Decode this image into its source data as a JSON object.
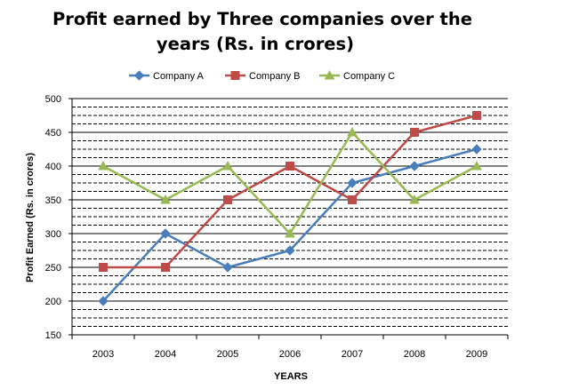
{
  "chart_data": {
    "type": "line",
    "title_line1": "Profit earned by Three companies over the",
    "title_line2": "years (Rs. in crores)",
    "xlabel": "YEARS",
    "ylabel": "Profit Earned (Rs.  in crores)",
    "categories": [
      "2003",
      "2004",
      "2005",
      "2006",
      "2007",
      "2008",
      "2009"
    ],
    "ylim": [
      150,
      500
    ],
    "yticks": [
      "150",
      "200",
      "250",
      "300",
      "350",
      "400",
      "450",
      "500"
    ],
    "ytick_values": [
      150,
      200,
      250,
      300,
      350,
      400,
      450,
      500
    ],
    "minor_grid_step": 12.5,
    "legend_position": "top",
    "series": [
      {
        "name": "Company A",
        "color": "#4a7ebb",
        "marker": "diamond",
        "values": [
          200,
          300,
          250,
          275,
          375,
          400,
          425
        ]
      },
      {
        "name": "Company B",
        "color": "#be4b48",
        "marker": "square",
        "values": [
          250,
          250,
          350,
          400,
          350,
          450,
          475
        ]
      },
      {
        "name": "Company C",
        "color": "#98b954",
        "marker": "triangle",
        "values": [
          400,
          350,
          400,
          300,
          450,
          350,
          400
        ]
      }
    ]
  }
}
